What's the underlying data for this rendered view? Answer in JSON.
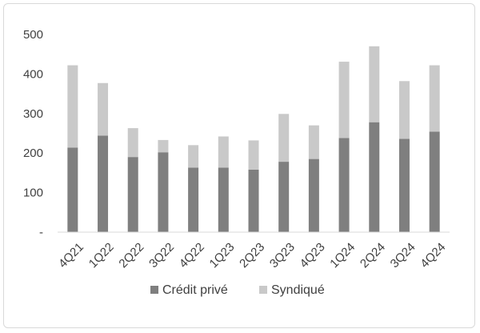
{
  "chart_data": {
    "type": "bar",
    "stacked": true,
    "categories": [
      "4Q21",
      "1Q22",
      "2Q22",
      "3Q22",
      "4Q22",
      "1Q23",
      "2Q23",
      "3Q23",
      "4Q23",
      "1Q24",
      "2Q24",
      "3Q24",
      "4Q24"
    ],
    "series": [
      {
        "name": "Crédit privé",
        "color": "#7f7f7f",
        "values": [
          214,
          244,
          190,
          202,
          163,
          163,
          158,
          178,
          185,
          238,
          278,
          236,
          254
        ]
      },
      {
        "name": "Syndiqué",
        "color": "#c9c9c9",
        "values": [
          208,
          133,
          73,
          31,
          57,
          79,
          74,
          121,
          85,
          193,
          192,
          146,
          168
        ]
      }
    ],
    "yticks": [
      "-",
      "100",
      "200",
      "300",
      "400",
      "500"
    ],
    "ylim": [
      0,
      500
    ],
    "grid": false,
    "legend_position": "bottom"
  }
}
